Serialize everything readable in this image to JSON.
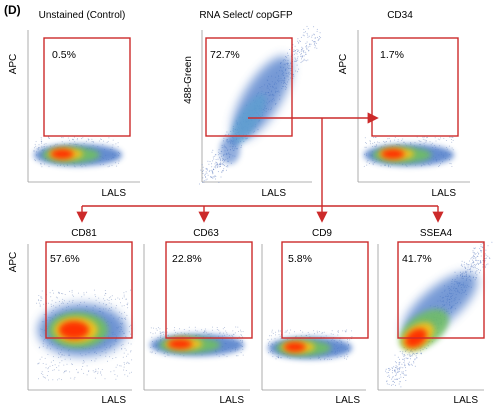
{
  "panel_label": "(D)",
  "colors": {
    "gate": "#cc2a2a",
    "arrow": "#cc2a2a",
    "density_low": "#4a78c8",
    "density_mid": "#6fbf60",
    "density_high": "#ff2a00"
  },
  "chart_data": [
    {
      "type": "scatter",
      "kind": "flow-cytometry-density",
      "title": "Unstained (Control)",
      "xlabel": "LALS",
      "ylabel": "APC",
      "gate_percent": "0.5%",
      "population": "horizontal band low on APC axis"
    },
    {
      "type": "scatter",
      "kind": "flow-cytometry-density",
      "title": "RNA Select/ copGFP",
      "xlabel": "LALS",
      "ylabel": "488-Green",
      "gate_percent": "72.7%",
      "population": "diagonal spread rising with LALS"
    },
    {
      "type": "scatter",
      "kind": "flow-cytometry-density",
      "title": "CD34",
      "xlabel": "LALS",
      "ylabel": "APC",
      "gate_percent": "1.7%",
      "population": "horizontal band low on APC axis"
    },
    {
      "type": "scatter",
      "kind": "flow-cytometry-density",
      "title": "CD81",
      "xlabel": "LALS",
      "ylabel": "APC",
      "gate_percent": "57.6%",
      "population": "dense cluster straddling gate boundary"
    },
    {
      "type": "scatter",
      "kind": "flow-cytometry-density",
      "title": "CD63",
      "xlabel": "LALS",
      "ylabel": "",
      "gate_percent": "22.8%",
      "population": "horizontal band near gate boundary"
    },
    {
      "type": "scatter",
      "kind": "flow-cytometry-density",
      "title": "CD9",
      "xlabel": "LALS",
      "ylabel": "",
      "gate_percent": "5.8%",
      "population": "horizontal band below gate"
    },
    {
      "type": "scatter",
      "kind": "flow-cytometry-density",
      "title": "SSEA4",
      "xlabel": "LALS",
      "ylabel": "",
      "gate_percent": "41.7%",
      "population": "diagonal spread with dense core"
    }
  ]
}
